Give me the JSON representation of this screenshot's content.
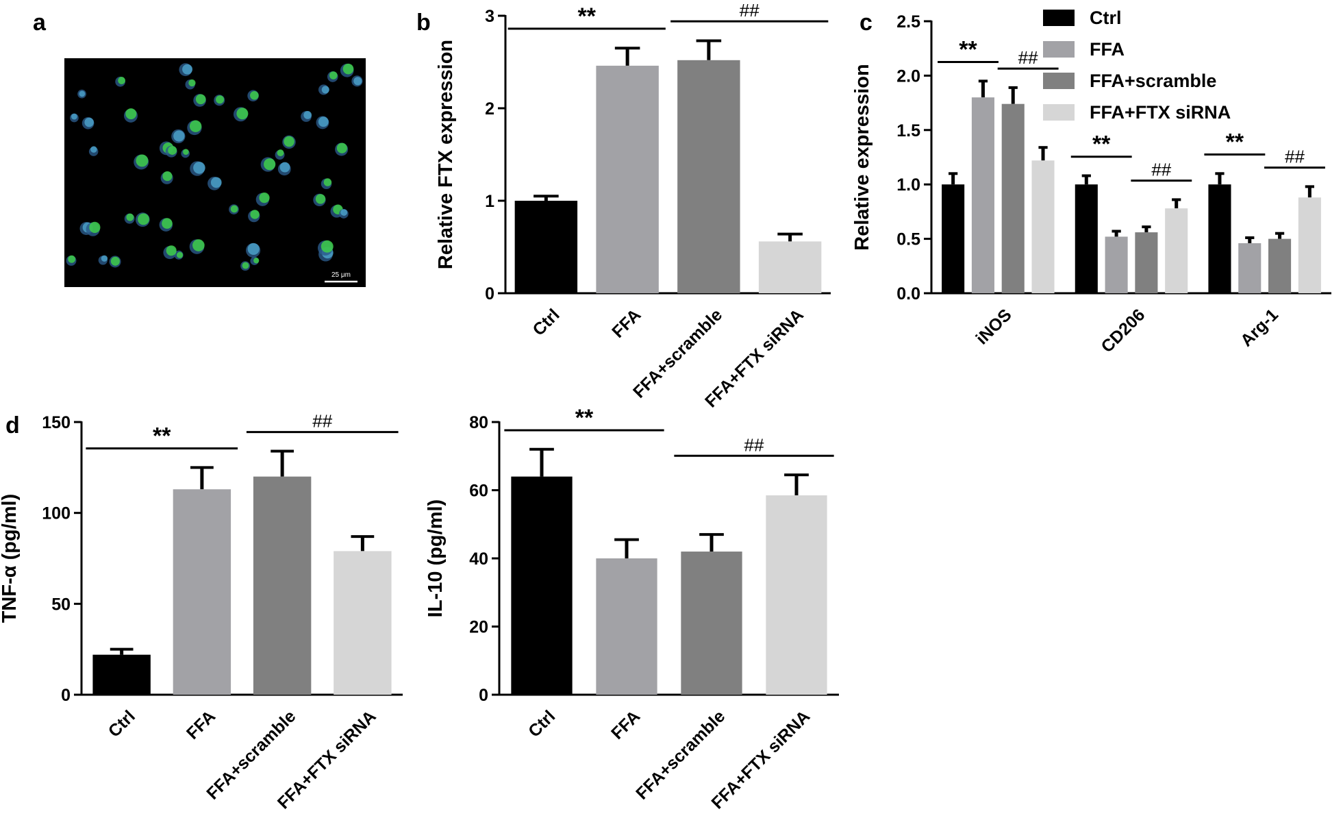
{
  "image": {
    "panel_label": "a",
    "scale_bar": "25 μm"
  },
  "chart_data": [
    {
      "type": "bar",
      "panel_label": "b",
      "ylabel": "Relative FTX expression",
      "categories": [
        "Ctrl",
        "FFA",
        "FFA+scramble",
        "FFA+FTX siRNA"
      ],
      "values": [
        1.0,
        2.46,
        2.52,
        0.56
      ],
      "errors": [
        0.05,
        0.19,
        0.21,
        0.08
      ],
      "colors": [
        "#000000",
        "#a2a2a6",
        "#808080",
        "#d6d6d6"
      ],
      "ylim": [
        0,
        3
      ],
      "yticks": [
        0,
        1,
        2,
        3
      ],
      "annotations": [
        {
          "text": "**",
          "from": 0,
          "to": 1
        },
        {
          "text": "##",
          "from": 2,
          "to": 3
        }
      ]
    },
    {
      "type": "bar",
      "panel_label": "c",
      "ylabel": "Relative expression",
      "categories": [
        "iNOS",
        "CD206",
        "Arg-1"
      ],
      "series": [
        {
          "name": "Ctrl",
          "color": "#000000",
          "values": [
            1.0,
            1.0,
            1.0
          ],
          "errors": [
            0.1,
            0.08,
            0.1
          ]
        },
        {
          "name": "FFA",
          "color": "#a2a2a6",
          "values": [
            1.8,
            0.52,
            0.46
          ],
          "errors": [
            0.15,
            0.05,
            0.05
          ]
        },
        {
          "name": "FFA+scramble",
          "color": "#808080",
          "values": [
            1.74,
            0.56,
            0.5
          ],
          "errors": [
            0.15,
            0.05,
            0.05
          ]
        },
        {
          "name": "FFA+FTX siRNA",
          "color": "#d6d6d6",
          "values": [
            1.22,
            0.78,
            0.88
          ],
          "errors": [
            0.12,
            0.08,
            0.1
          ]
        }
      ],
      "ylim": [
        0,
        2.5
      ],
      "yticks": [
        {
          "value": 0,
          "label": "0.0"
        },
        {
          "value": 0.5,
          "label": "0.5"
        },
        {
          "value": 1,
          "label": "1.0"
        },
        {
          "value": 1.5,
          "label": "1.5"
        },
        {
          "value": 2,
          "label": "2.0"
        },
        {
          "value": 2.5,
          "label": "2.5"
        }
      ],
      "legend": "top-right",
      "annotations": [
        {
          "text": "**",
          "group": 0,
          "from": 0,
          "to": 1
        },
        {
          "text": "##",
          "group": 0,
          "from": 2,
          "to": 3
        },
        {
          "text": "**",
          "group": 1,
          "from": 0,
          "to": 1
        },
        {
          "text": "##",
          "group": 1,
          "from": 2,
          "to": 3
        },
        {
          "text": "**",
          "group": 2,
          "from": 0,
          "to": 1
        },
        {
          "text": "##",
          "group": 2,
          "from": 2,
          "to": 3
        }
      ]
    },
    {
      "type": "bar",
      "panel_label": "d",
      "ylabel": "TNF-α (pg/ml)",
      "categories": [
        "Ctrl",
        "FFA",
        "FFA+scramble",
        "FFA+FTX siRNA"
      ],
      "values": [
        22,
        113,
        120,
        79
      ],
      "errors": [
        3,
        12,
        14,
        8
      ],
      "colors": [
        "#000000",
        "#a2a2a6",
        "#808080",
        "#d6d6d6"
      ],
      "ylim": [
        0,
        150
      ],
      "yticks": [
        0,
        50,
        100,
        150
      ],
      "annotations": [
        {
          "text": "**",
          "from": 0,
          "to": 1
        },
        {
          "text": "##",
          "from": 2,
          "to": 3
        }
      ]
    },
    {
      "type": "bar",
      "ylabel": "IL-10 (pg/ml)",
      "categories": [
        "Ctrl",
        "FFA",
        "FFA+scramble",
        "FFA+FTX siRNA"
      ],
      "values": [
        64,
        40,
        42,
        58.5
      ],
      "errors": [
        8,
        5.5,
        5,
        6
      ],
      "colors": [
        "#000000",
        "#a2a2a6",
        "#808080",
        "#d6d6d6"
      ],
      "ylim": [
        0,
        80
      ],
      "yticks": [
        0,
        20,
        40,
        60,
        80
      ],
      "annotations": [
        {
          "text": "**",
          "from": 0,
          "to": 1
        },
        {
          "text": "##",
          "from": 2,
          "to": 3
        }
      ]
    }
  ]
}
